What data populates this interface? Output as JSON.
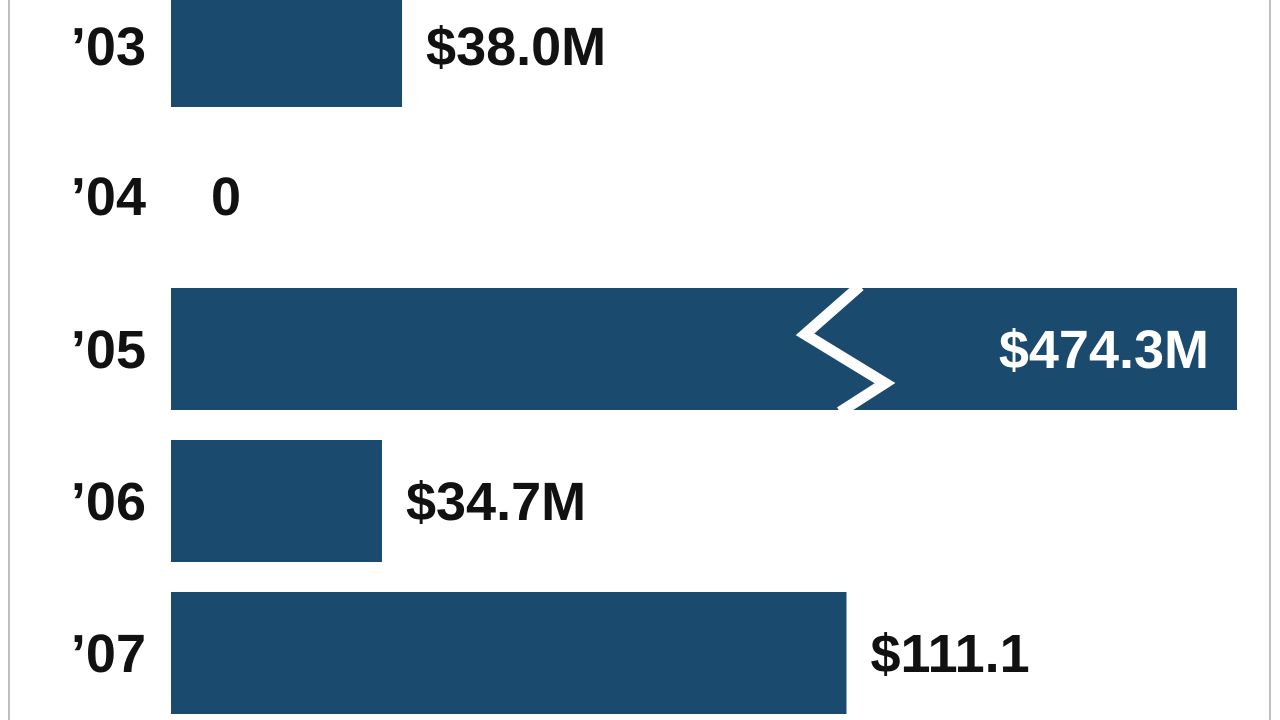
{
  "chart_data": {
    "type": "bar",
    "orientation": "horizontal",
    "categories": [
      "’03",
      "’04",
      "’05",
      "’06",
      "’07"
    ],
    "values": [
      38.0,
      0,
      474.3,
      34.7,
      111.1
    ],
    "data_labels": [
      "$38.0M",
      "0",
      "$474.3M",
      "$34.7M",
      "$111.1"
    ],
    "axis_break": true,
    "grid": false,
    "legend": "none",
    "colors": {
      "bar": "#1a4a6e",
      "frame": "#bfbfbf",
      "text": "#111111",
      "inside_text": "#ffffff"
    }
  }
}
